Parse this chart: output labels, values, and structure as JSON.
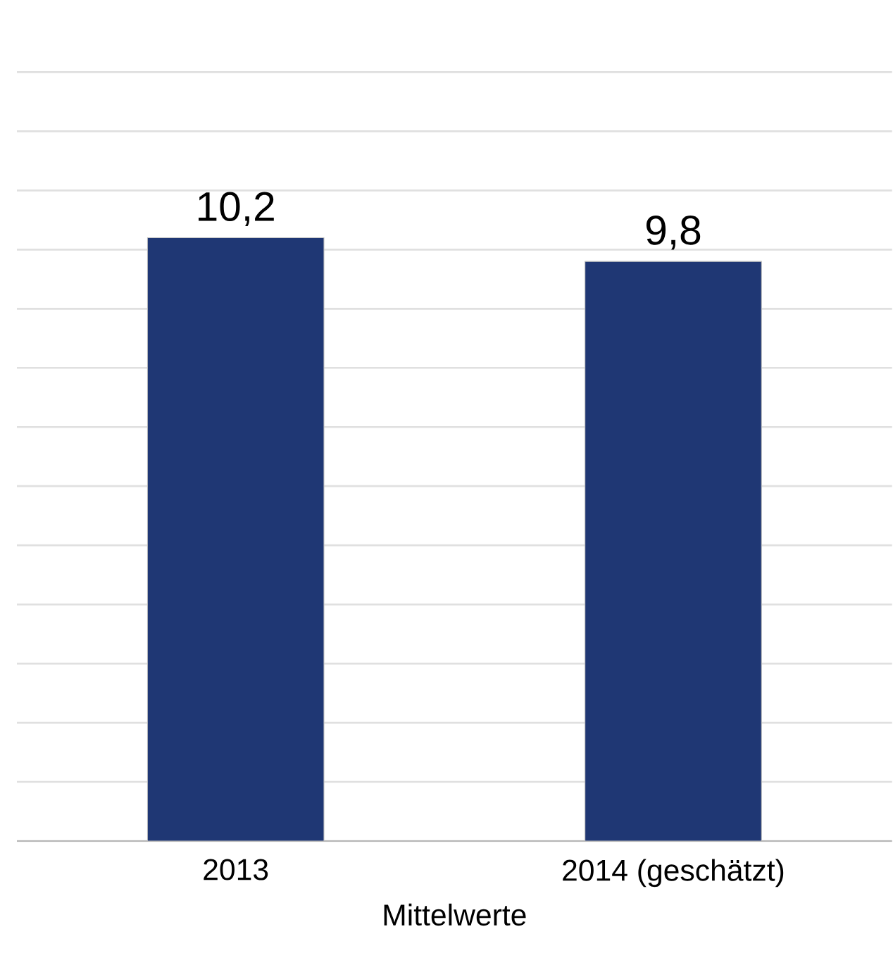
{
  "chart_data": {
    "type": "bar",
    "xlabel": "Mittelwerte",
    "categories": [
      "2013",
      "2014 (geschätzt)"
    ],
    "values": [
      10.2,
      9.8
    ],
    "value_labels": [
      "10,2",
      "9,8"
    ],
    "color": "#1f3774",
    "grid": "y",
    "tick_labels": "x"
  }
}
